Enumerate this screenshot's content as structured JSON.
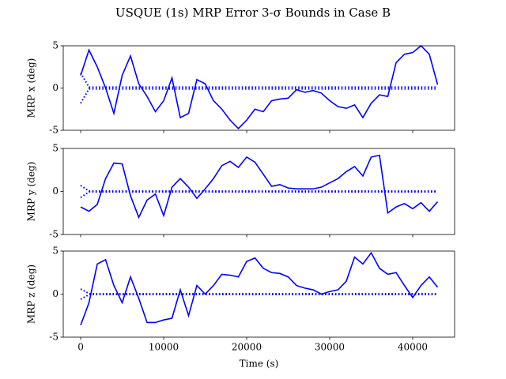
{
  "chart_data": [
    {
      "type": "line",
      "title": "USQUE (1s) MRP Error 3-σ Bounds in Case B",
      "ylabel": "MRP x (deg)",
      "xlim": [
        -2100,
        45050
      ],
      "xticks": [
        0,
        10000,
        20000,
        30000,
        40000
      ],
      "ylim": [
        -5,
        5
      ],
      "yticks": [
        -5,
        0,
        5
      ],
      "x": [
        0,
        1000,
        2000,
        3000,
        4000,
        5000,
        6000,
        7000,
        8000,
        9000,
        10000,
        11000,
        12000,
        13000,
        14000,
        15000,
        16000,
        17000,
        18000,
        19000,
        20000,
        21000,
        22000,
        23000,
        24000,
        25000,
        26000,
        27000,
        28000,
        29000,
        30000,
        31000,
        32000,
        33000,
        34000,
        35000,
        36000,
        37000,
        38000,
        39000,
        40000,
        41000,
        42000,
        43000
      ],
      "series": [
        {
          "color": "#0000ff",
          "linestyle": "solid",
          "values": [
            1.5,
            4.5,
            2.5,
            0,
            -3,
            1.5,
            3.8,
            0.5,
            -1,
            -2.8,
            -1.5,
            1.2,
            -3.5,
            -3,
            1,
            0.5,
            -1.5,
            -2.5,
            -3.8,
            -4.8,
            -3.8,
            -2.5,
            -2.8,
            -1.5,
            -1.3,
            -1.2,
            -0.2,
            -0.5,
            -0.3,
            -0.6,
            -1.5,
            -2.2,
            -2.4,
            -2,
            -3.5,
            -1.8,
            -0.8,
            -1,
            3,
            4,
            4.2,
            5,
            4,
            0.4
          ]
        },
        {
          "color": "#0000ff",
          "linestyle": "dotted",
          "values": [
            1.8,
            0.1,
            0.1,
            0.1,
            0.1,
            0.1,
            0.1,
            0.1,
            0.1,
            0.1,
            0.1,
            0.1,
            0.1,
            0.1,
            0.1,
            0.1,
            0.1,
            0.1,
            0.1,
            0.1,
            0.1,
            0.1,
            0.1,
            0.1,
            0.1,
            0.1,
            0.1,
            0.1,
            0.1,
            0.1,
            0.1,
            0.1,
            0.1,
            0.1,
            0.1,
            0.1,
            0.1,
            0.1,
            0.1,
            0.1,
            0.1,
            0.1,
            0.1,
            0.1
          ]
        },
        {
          "color": "#0000ff",
          "linestyle": "dotted",
          "values": [
            -1.8,
            -0.1,
            -0.1,
            -0.1,
            -0.1,
            -0.1,
            -0.1,
            -0.1,
            -0.1,
            -0.1,
            -0.1,
            -0.1,
            -0.1,
            -0.1,
            -0.1,
            -0.1,
            -0.1,
            -0.1,
            -0.1,
            -0.1,
            -0.1,
            -0.1,
            -0.1,
            -0.1,
            -0.1,
            -0.1,
            -0.1,
            -0.1,
            -0.1,
            -0.1,
            -0.1,
            -0.1,
            -0.1,
            -0.1,
            -0.1,
            -0.1,
            -0.1,
            -0.1,
            -0.1,
            -0.1,
            -0.1,
            -0.1,
            -0.1,
            -0.1
          ]
        }
      ]
    },
    {
      "type": "line",
      "ylabel": "MRP y (deg)",
      "xlim": [
        -2100,
        45050
      ],
      "xticks": [
        0,
        10000,
        20000,
        30000,
        40000
      ],
      "ylim": [
        -5,
        5
      ],
      "yticks": [
        -5,
        0,
        5
      ],
      "x": [
        0,
        1000,
        2000,
        3000,
        4000,
        5000,
        6000,
        7000,
        8000,
        9000,
        10000,
        11000,
        12000,
        13000,
        14000,
        15000,
        16000,
        17000,
        18000,
        19000,
        20000,
        21000,
        22000,
        23000,
        24000,
        25000,
        26000,
        27000,
        28000,
        29000,
        30000,
        31000,
        32000,
        33000,
        34000,
        35000,
        36000,
        37000,
        38000,
        39000,
        40000,
        41000,
        42000,
        43000
      ],
      "series": [
        {
          "color": "#0000ff",
          "linestyle": "solid",
          "values": [
            -1.8,
            -2.3,
            -1.5,
            1.5,
            3.3,
            3.2,
            -0.5,
            -3,
            -1,
            -0.3,
            -2.8,
            0.5,
            1.5,
            0.5,
            -0.8,
            0.3,
            1.5,
            3,
            3.5,
            2.8,
            4,
            3.4,
            2,
            0.6,
            0.8,
            0.4,
            0.3,
            0.3,
            0.3,
            0.5,
            1,
            1.5,
            2.3,
            2.9,
            1.8,
            4,
            4.2,
            -2.5,
            -1.8,
            -1.4,
            -2,
            -1.3,
            -2.3,
            -1.2
          ]
        },
        {
          "color": "#0000ff",
          "linestyle": "dotted",
          "values": [
            0.7,
            0.05,
            0.05,
            0.05,
            0.05,
            0.05,
            0.05,
            0.05,
            0.05,
            0.05,
            0.05,
            0.05,
            0.05,
            0.05,
            0.05,
            0.05,
            0.05,
            0.05,
            0.05,
            0.05,
            0.05,
            0.05,
            0.05,
            0.05,
            0.05,
            0.05,
            0.05,
            0.05,
            0.05,
            0.05,
            0.05,
            0.05,
            0.05,
            0.05,
            0.05,
            0.05,
            0.05,
            0.05,
            0.05,
            0.05,
            0.05,
            0.05,
            0.05,
            0.05
          ]
        },
        {
          "color": "#0000ff",
          "linestyle": "dotted",
          "values": [
            -0.7,
            -0.05,
            -0.05,
            -0.05,
            -0.05,
            -0.05,
            -0.05,
            -0.05,
            -0.05,
            -0.05,
            -0.05,
            -0.05,
            -0.05,
            -0.05,
            -0.05,
            -0.05,
            -0.05,
            -0.05,
            -0.05,
            -0.05,
            -0.05,
            -0.05,
            -0.05,
            -0.05,
            -0.05,
            -0.05,
            -0.05,
            -0.05,
            -0.05,
            -0.05,
            -0.05,
            -0.05,
            -0.05,
            -0.05,
            -0.05,
            -0.05,
            -0.05,
            -0.05,
            -0.05,
            -0.05,
            -0.05,
            -0.05,
            -0.05,
            -0.05
          ]
        }
      ]
    },
    {
      "type": "line",
      "ylabel": "MRP z (deg)",
      "xlabel": "Time (s)",
      "xlim": [
        -2100,
        45050
      ],
      "xticks": [
        0,
        10000,
        20000,
        30000,
        40000
      ],
      "ylim": [
        -5,
        5
      ],
      "yticks": [
        -5,
        0,
        5
      ],
      "x": [
        0,
        1000,
        2000,
        3000,
        4000,
        5000,
        6000,
        7000,
        8000,
        9000,
        10000,
        11000,
        12000,
        13000,
        14000,
        15000,
        16000,
        17000,
        18000,
        19000,
        20000,
        21000,
        22000,
        23000,
        24000,
        25000,
        26000,
        27000,
        28000,
        29000,
        30000,
        31000,
        32000,
        33000,
        34000,
        35000,
        36000,
        37000,
        38000,
        39000,
        40000,
        41000,
        42000,
        43000
      ],
      "series": [
        {
          "color": "#0000ff",
          "linestyle": "solid",
          "values": [
            -3.6,
            -1,
            3.5,
            4,
            1,
            -1,
            2,
            -0.5,
            -3.3,
            -3.3,
            -3,
            -2.8,
            0.5,
            -2.5,
            1,
            0,
            1,
            2.3,
            2.2,
            2,
            3.8,
            4.2,
            3,
            2.5,
            2.4,
            2,
            1,
            0.7,
            0.5,
            0,
            0.3,
            0.5,
            1.5,
            4.3,
            3.5,
            4.8,
            3,
            2.3,
            2.5,
            1,
            -0.4,
            1,
            2,
            0.8
          ]
        },
        {
          "color": "#0000ff",
          "linestyle": "dotted",
          "values": [
            0.6,
            0.05,
            0.05,
            0.05,
            0.05,
            0.05,
            0.05,
            0.05,
            0.05,
            0.05,
            0.05,
            0.05,
            0.05,
            0.05,
            0.05,
            0.05,
            0.05,
            0.05,
            0.05,
            0.05,
            0.05,
            0.05,
            0.05,
            0.05,
            0.05,
            0.05,
            0.05,
            0.05,
            0.05,
            0.05,
            0.05,
            0.05,
            0.05,
            0.05,
            0.05,
            0.05,
            0.05,
            0.05,
            0.05,
            0.05,
            0.05,
            0.05,
            0.05,
            0.05
          ]
        },
        {
          "color": "#0000ff",
          "linestyle": "dotted",
          "values": [
            -0.6,
            -0.05,
            -0.05,
            -0.05,
            -0.05,
            -0.05,
            -0.05,
            -0.05,
            -0.05,
            -0.05,
            -0.05,
            -0.05,
            -0.05,
            -0.05,
            -0.05,
            -0.05,
            -0.05,
            -0.05,
            -0.05,
            -0.05,
            -0.05,
            -0.05,
            -0.05,
            -0.05,
            -0.05,
            -0.05,
            -0.05,
            -0.05,
            -0.05,
            -0.05,
            -0.05,
            -0.05,
            -0.05,
            -0.05,
            -0.05,
            -0.05,
            -0.05,
            -0.05,
            -0.05,
            -0.05,
            -0.05,
            -0.05,
            -0.05,
            -0.05
          ]
        }
      ]
    }
  ]
}
